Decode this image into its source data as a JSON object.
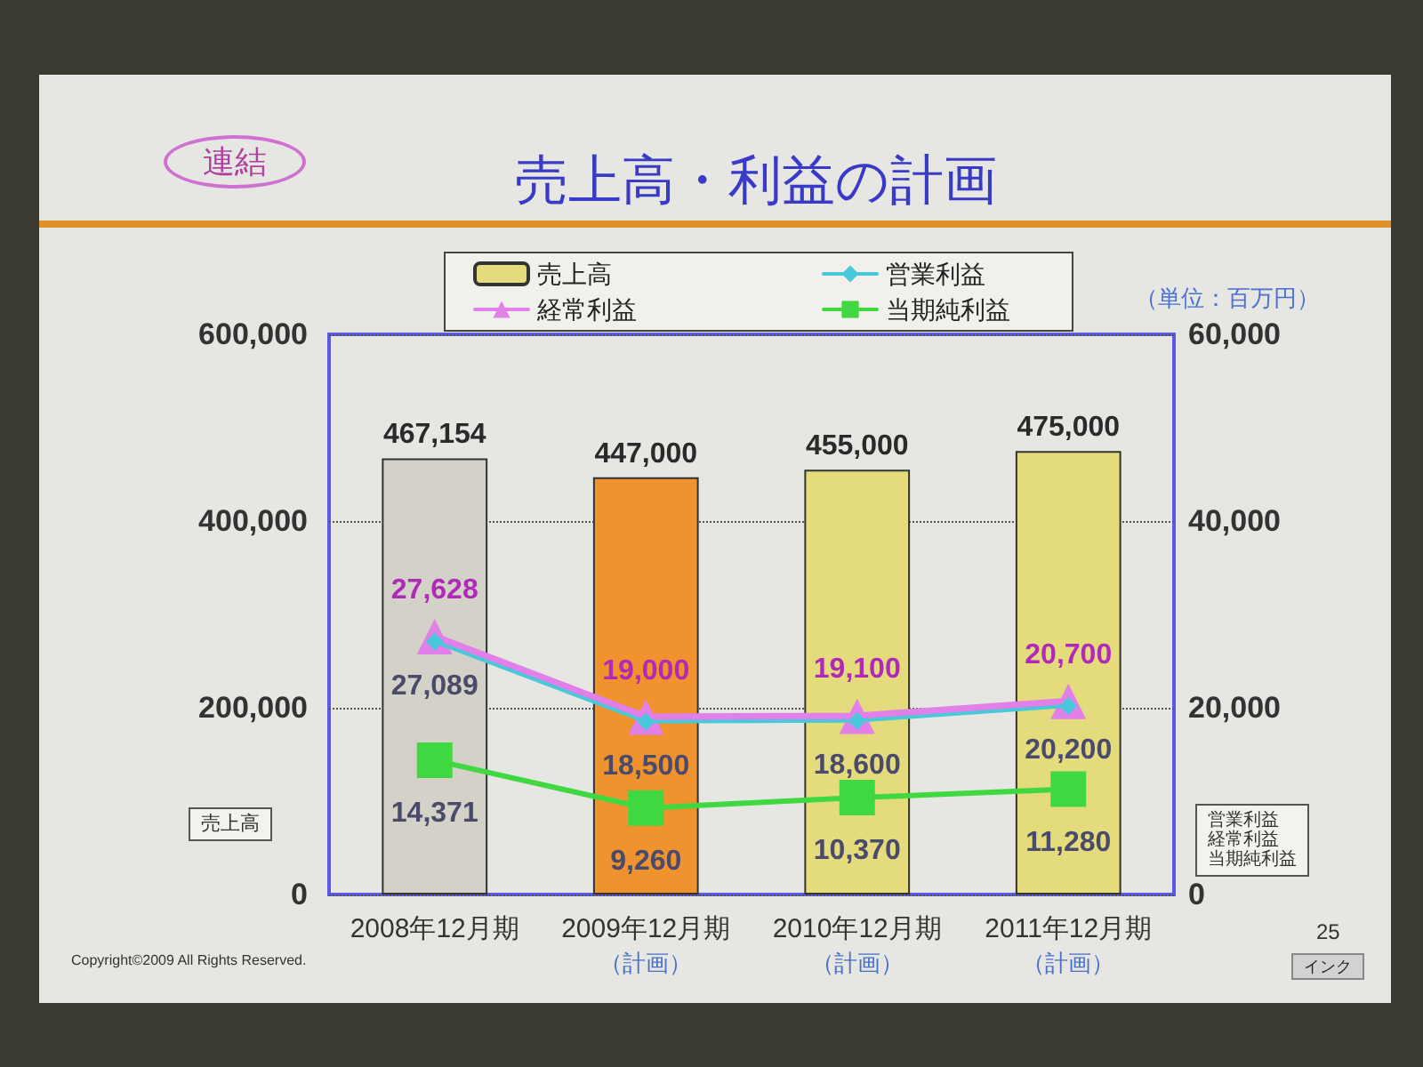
{
  "chart_data": {
    "type": "bar",
    "title": "売上高・利益の計画",
    "ylabel": "売上高",
    "y2label": "営業利益経常利益当期純利益",
    "annotations": [
      "連結",
      "（単位：百万円）",
      "Copyright©2009 All Rights Reserved.",
      "25",
      "インク"
    ],
    "categories": [
      "2008年12月期",
      "2009年12月期（計画）",
      "2010年12月期（計画）",
      "2011年12月期（計画）"
    ],
    "series": [
      {
        "name": "売上高",
        "color": "#e4dc7c",
        "colors": [
          "#d4d2c8",
          "#f0922e",
          "#e4dc7c",
          "#e4dc7c"
        ],
        "values": [
          467154,
          447000,
          455000,
          475000
        ],
        "value_labels": [
          "467,154",
          "447,000",
          "455,000",
          "475,000"
        ]
      },
      {
        "name": "営業利益",
        "type": "line",
        "axis": "y2",
        "color": "#48c8d8",
        "marker": "diamond",
        "values": [
          27089,
          18500,
          18600,
          20200
        ],
        "value_labels": [
          "27,089",
          "18,500",
          "18,600",
          "20,200"
        ]
      },
      {
        "name": "経常利益",
        "type": "line",
        "axis": "y2",
        "color": "#e080e8",
        "marker": "triangle",
        "values": [
          27628,
          19000,
          19100,
          20700
        ],
        "value_labels": [
          "27,628",
          "19,000",
          "19,100",
          "20,700"
        ]
      },
      {
        "name": "当期純利益",
        "type": "line",
        "axis": "y2",
        "color": "#40d840",
        "marker": "square",
        "values": [
          14371,
          9260,
          10370,
          11280
        ],
        "value_labels": [
          "14,371",
          "9,260",
          "10,370",
          "11,280"
        ]
      }
    ],
    "ylim": [
      0,
      600000
    ],
    "yticks": [
      0,
      {
        "value": 200000,
        "label": "200,000"
      },
      {
        "value": 400000,
        "label": "400,000"
      },
      {
        "value": 600000,
        "label": "600,000"
      }
    ],
    "y2lim": [
      0,
      60000
    ],
    "y2ticks": [
      0,
      {
        "value": 20000,
        "label": "20,000"
      },
      {
        "value": 40000,
        "label": "40,000"
      },
      {
        "value": 60000,
        "label": "60,000"
      }
    ],
    "grid": "y",
    "legend": "top"
  }
}
